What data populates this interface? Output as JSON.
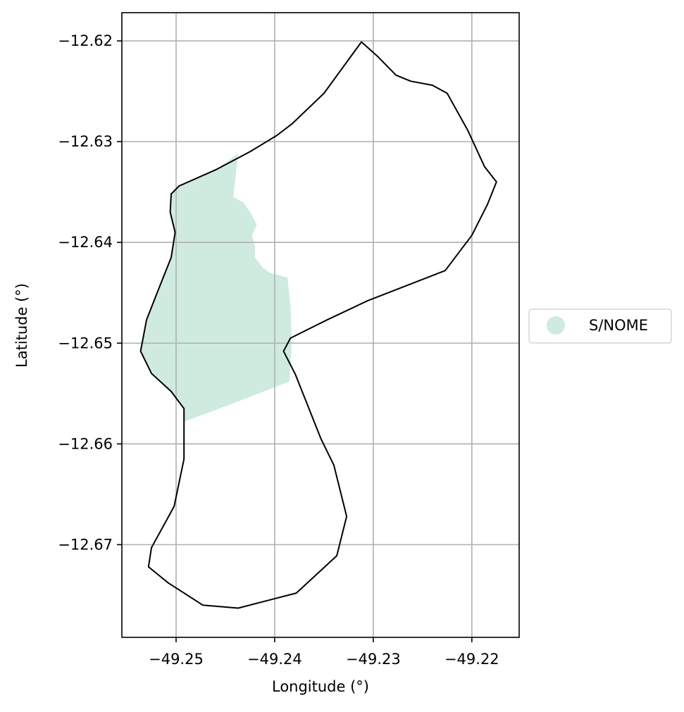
{
  "chart_data": {
    "type": "map",
    "xlabel": "Longitude (°)",
    "ylabel": "Latitude (°)",
    "xlim": [
      -49.2555,
      -49.2152
    ],
    "ylim": [
      -12.6792,
      -12.6172
    ],
    "x_ticks": [
      -49.25,
      -49.24,
      -49.23,
      -49.22
    ],
    "y_ticks": [
      -12.62,
      -12.63,
      -12.64,
      -12.65,
      -12.66,
      -12.67
    ],
    "x_tick_labels": [
      "−49.25",
      "−49.24",
      "−49.23",
      "−49.22"
    ],
    "y_tick_labels": [
      "−12.62",
      "−12.63",
      "−12.64",
      "−12.65",
      "−12.66",
      "−12.67"
    ],
    "grid": true,
    "legend_placement": "center-right-outside",
    "legend": [
      {
        "label": "S/NOME",
        "color": "#cfeade"
      }
    ],
    "colors": {
      "fill": "#cfeade",
      "outline": "#000000",
      "grid": "#b0b0b0"
    },
    "boundary_outline": [
      [
        -49.2312,
        -12.6201
      ],
      [
        -49.2295,
        -12.6216
      ],
      [
        -49.2277,
        -12.6234
      ],
      [
        -49.2262,
        -12.624
      ],
      [
        -49.224,
        -12.6244
      ],
      [
        -49.2225,
        -12.6252
      ],
      [
        -49.2204,
        -12.6289
      ],
      [
        -49.2187,
        -12.6325
      ],
      [
        -49.2175,
        -12.634
      ],
      [
        -49.2184,
        -12.6362
      ],
      [
        -49.22,
        -12.6393
      ],
      [
        -49.2227,
        -12.6428
      ],
      [
        -49.2306,
        -12.6458
      ],
      [
        -49.2347,
        -12.6477
      ],
      [
        -49.2384,
        -12.6495
      ],
      [
        -49.2391,
        -12.6508
      ],
      [
        -49.2379,
        -12.6531
      ],
      [
        -49.2353,
        -12.6595
      ],
      [
        -49.234,
        -12.6621
      ],
      [
        -49.2327,
        -12.6672
      ],
      [
        -49.2337,
        -12.6711
      ],
      [
        -49.2378,
        -12.6748
      ],
      [
        -49.2437,
        -12.6763
      ],
      [
        -49.2473,
        -12.676
      ],
      [
        -49.2508,
        -12.6738
      ],
      [
        -49.2528,
        -12.6722
      ],
      [
        -49.2525,
        -12.6703
      ],
      [
        -49.2502,
        -12.6662
      ],
      [
        -49.2492,
        -12.6615
      ],
      [
        -49.2492,
        -12.6565
      ],
      [
        -49.2505,
        -12.6548
      ],
      [
        -49.2525,
        -12.653
      ],
      [
        -49.2536,
        -12.6508
      ],
      [
        -49.253,
        -12.6477
      ],
      [
        -49.2518,
        -12.6447
      ],
      [
        -49.2505,
        -12.6415
      ],
      [
        -49.2501,
        -12.639
      ],
      [
        -49.2506,
        -12.637
      ],
      [
        -49.2505,
        -12.6352
      ],
      [
        -49.2497,
        -12.6344
      ],
      [
        -49.246,
        -12.6328
      ],
      [
        -49.2425,
        -12.631
      ],
      [
        -49.2398,
        -12.6294
      ],
      [
        -49.2382,
        -12.6282
      ],
      [
        -49.235,
        -12.6252
      ],
      [
        -49.2312,
        -12.6201
      ]
    ],
    "s_nome_area": [
      [
        -49.2437,
        -12.6312
      ],
      [
        -49.2442,
        -12.6355
      ],
      [
        -49.2432,
        -12.636
      ],
      [
        -49.2425,
        -12.637
      ],
      [
        -49.2418,
        -12.6382
      ],
      [
        -49.2423,
        -12.6393
      ],
      [
        -49.242,
        -12.6404
      ],
      [
        -49.242,
        -12.6415
      ],
      [
        -49.2412,
        -12.6425
      ],
      [
        -49.2405,
        -12.643
      ],
      [
        -49.2387,
        -12.6435
      ],
      [
        -49.2384,
        -12.6462
      ],
      [
        -49.2383,
        -12.649
      ],
      [
        -49.2383,
        -12.6508
      ],
      [
        -49.2385,
        -12.6538
      ],
      [
        -49.2448,
        -12.6562
      ],
      [
        -49.2492,
        -12.6578
      ],
      [
        -49.2492,
        -12.6565
      ],
      [
        -49.2505,
        -12.6548
      ],
      [
        -49.2525,
        -12.653
      ],
      [
        -49.2536,
        -12.6508
      ],
      [
        -49.253,
        -12.6477
      ],
      [
        -49.2518,
        -12.6447
      ],
      [
        -49.2505,
        -12.6415
      ],
      [
        -49.2501,
        -12.639
      ],
      [
        -49.2506,
        -12.637
      ],
      [
        -49.2505,
        -12.6352
      ],
      [
        -49.2497,
        -12.6344
      ],
      [
        -49.246,
        -12.6328
      ],
      [
        -49.2437,
        -12.6312
      ]
    ]
  }
}
